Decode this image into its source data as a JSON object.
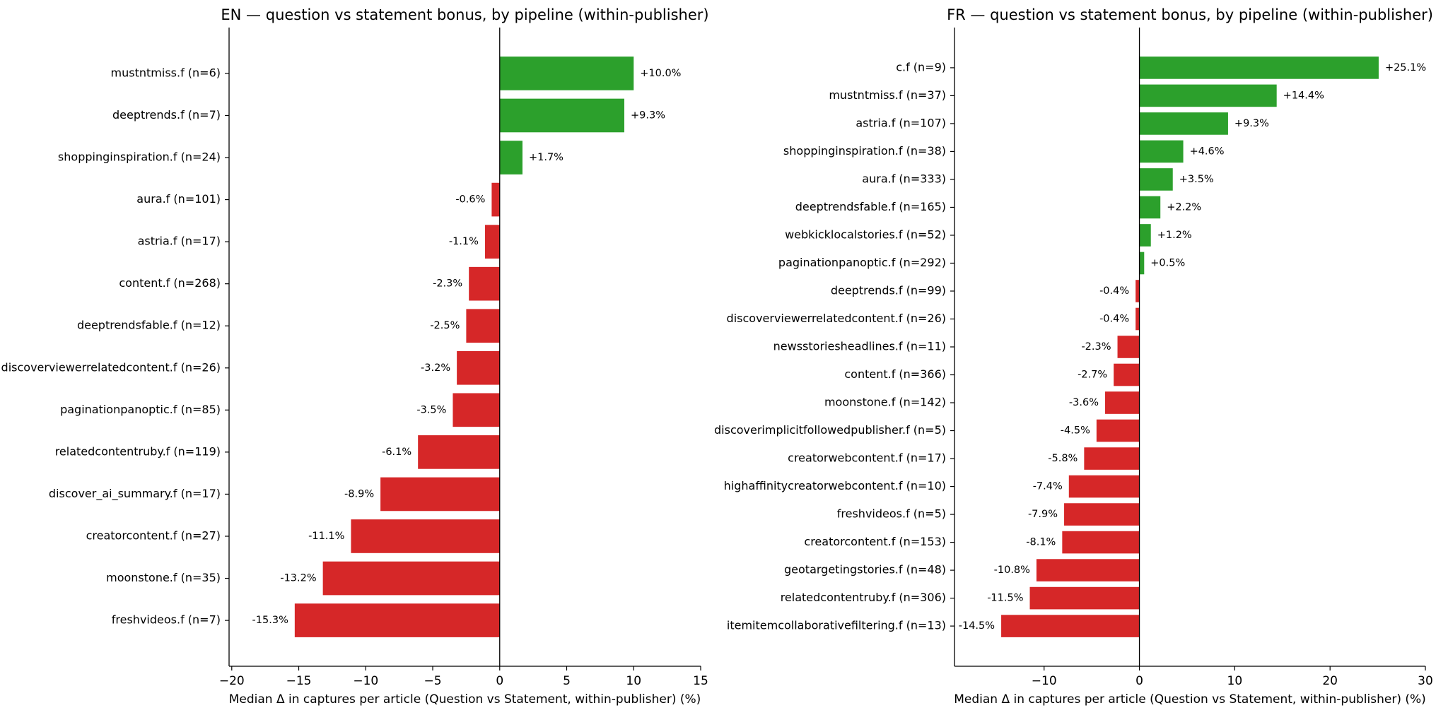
{
  "chart_data": [
    {
      "type": "barh",
      "title": "EN — question vs statement bonus, by pipeline (within-publisher)",
      "xlabel": "Median Δ in captures per article (Question vs Statement, within-publisher) (%)",
      "categories": [
        "mustntmiss.f  (n=6)",
        "deeptrends.f  (n=7)",
        "shoppinginspiration.f  (n=24)",
        "aura.f  (n=101)",
        "astria.f  (n=17)",
        "content.f  (n=268)",
        "deeptrendsfable.f  (n=12)",
        "discoverviewerrelatedcontent.f  (n=26)",
        "paginationpanoptic.f  (n=85)",
        "relatedcontentruby.f  (n=119)",
        "discover_ai_summary.f  (n=17)",
        "creatorcontent.f  (n=27)",
        "moonstone.f  (n=35)",
        "freshvideos.f  (n=7)"
      ],
      "values": [
        10.0,
        9.3,
        1.7,
        -0.6,
        -1.1,
        -2.3,
        -2.5,
        -3.2,
        -3.5,
        -6.1,
        -8.9,
        -11.1,
        -13.2,
        -15.3
      ],
      "value_labels": [
        "+10.0%",
        "+9.3%",
        "+1.7%",
        "-0.6%",
        "-1.1%",
        "-2.3%",
        "-2.5%",
        "-3.2%",
        "-3.5%",
        "-6.1%",
        "-8.9%",
        "-11.1%",
        "-13.2%",
        "-15.3%"
      ],
      "positive_color": "#2ca02c",
      "negative_color": "#d62728",
      "xlim": [
        -20.2,
        15
      ],
      "xticks": [
        {
          "value": -20,
          "label": "−20"
        },
        {
          "value": -15,
          "label": "−15"
        },
        {
          "value": -10,
          "label": "−10"
        },
        {
          "value": -5,
          "label": "−5"
        },
        0,
        5,
        10,
        15
      ]
    },
    {
      "type": "barh",
      "title": "FR — question vs statement bonus, by pipeline (within-publisher)",
      "xlabel": "Median Δ in captures per article (Question vs Statement, within-publisher) (%)",
      "categories": [
        "c.f  (n=9)",
        "mustntmiss.f  (n=37)",
        "astria.f  (n=107)",
        "shoppinginspiration.f  (n=38)",
        "aura.f  (n=333)",
        "deeptrendsfable.f  (n=165)",
        "webkicklocalstories.f  (n=52)",
        "paginationpanoptic.f  (n=292)",
        "deeptrends.f  (n=99)",
        "discoverviewerrelatedcontent.f  (n=26)",
        "newsstoriesheadlines.f  (n=11)",
        "content.f  (n=366)",
        "moonstone.f  (n=142)",
        "discoverimplicitfollowedpublisher.f  (n=5)",
        "creatorwebcontent.f  (n=17)",
        "highaffinitycreatorwebcontent.f  (n=10)",
        "freshvideos.f  (n=5)",
        "creatorcontent.f  (n=153)",
        "geotargetingstories.f  (n=48)",
        "relatedcontentruby.f  (n=306)",
        "itemitemcollaborativefiltering.f  (n=13)"
      ],
      "values": [
        25.1,
        14.4,
        9.3,
        4.6,
        3.5,
        2.2,
        1.2,
        0.5,
        -0.4,
        -0.4,
        -2.3,
        -2.7,
        -3.6,
        -4.5,
        -5.8,
        -7.4,
        -7.9,
        -8.1,
        -10.8,
        -11.5,
        -14.5
      ],
      "value_labels": [
        "+25.1%",
        "+14.4%",
        "+9.3%",
        "+4.6%",
        "+3.5%",
        "+2.2%",
        "+1.2%",
        "+0.5%",
        "-0.4%",
        "-0.4%",
        "-2.3%",
        "-2.7%",
        "-3.6%",
        "-4.5%",
        "-5.8%",
        "-7.4%",
        "-7.9%",
        "-8.1%",
        "-10.8%",
        "-11.5%",
        "-14.5%"
      ],
      "positive_color": "#2ca02c",
      "negative_color": "#d62728",
      "xlim": [
        -19.4,
        30
      ],
      "xticks": [
        {
          "value": -10,
          "label": "−10"
        },
        0,
        10,
        20,
        30
      ]
    }
  ]
}
